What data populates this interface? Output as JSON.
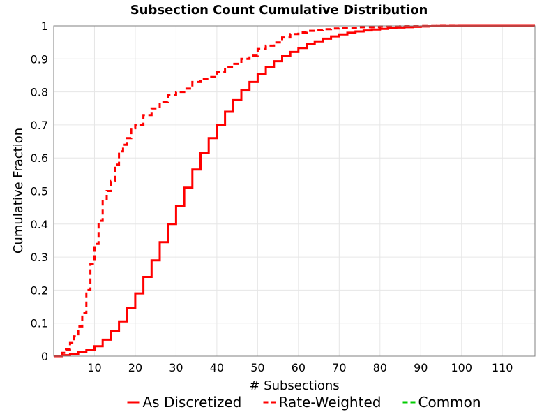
{
  "chart_data": {
    "type": "line",
    "title": "Subsection Count Cumulative Distribution",
    "xlabel": "# Subsections",
    "ylabel": "Cumulative Fraction",
    "xlim": [
      0,
      118
    ],
    "ylim": [
      0,
      1
    ],
    "x_ticks": [
      10,
      20,
      30,
      40,
      50,
      60,
      70,
      80,
      90,
      100,
      110
    ],
    "y_ticks": [
      "0",
      "0.1",
      "0.2",
      "0.3",
      "0.4",
      "0.5",
      "0.6",
      "0.7",
      "0.8",
      "0.9",
      "1"
    ],
    "grid": true,
    "legend_position": "bottom",
    "series": [
      {
        "name": "As Discretized",
        "color": "#ff0000",
        "style": "solid",
        "step": true,
        "x": [
          0,
          2,
          4,
          6,
          8,
          10,
          12,
          14,
          16,
          18,
          20,
          22,
          24,
          26,
          28,
          30,
          32,
          34,
          36,
          38,
          40,
          42,
          44,
          46,
          48,
          50,
          52,
          54,
          56,
          58,
          60,
          62,
          64,
          66,
          68,
          70,
          72,
          74,
          76,
          78,
          80,
          82,
          84,
          86,
          88,
          90,
          92,
          94,
          96,
          98,
          100,
          105,
          110,
          118
        ],
        "y": [
          0.0,
          0.003,
          0.007,
          0.012,
          0.018,
          0.03,
          0.05,
          0.075,
          0.105,
          0.145,
          0.19,
          0.24,
          0.29,
          0.345,
          0.4,
          0.455,
          0.51,
          0.565,
          0.615,
          0.66,
          0.7,
          0.74,
          0.775,
          0.805,
          0.83,
          0.855,
          0.875,
          0.893,
          0.908,
          0.921,
          0.933,
          0.944,
          0.953,
          0.961,
          0.968,
          0.974,
          0.979,
          0.983,
          0.986,
          0.989,
          0.991,
          0.993,
          0.995,
          0.996,
          0.997,
          0.998,
          0.999,
          0.9993,
          0.9996,
          0.9998,
          1.0,
          1.0,
          1.0,
          1.0
        ]
      },
      {
        "name": "Rate-Weighted",
        "color": "#ff0000",
        "style": "dashed",
        "step": true,
        "x": [
          0,
          2,
          3,
          4,
          5,
          6,
          7,
          8,
          9,
          10,
          11,
          12,
          13,
          14,
          15,
          16,
          17,
          18,
          19,
          20,
          22,
          24,
          26,
          28,
          30,
          32,
          34,
          36,
          38,
          40,
          42,
          44,
          46,
          48,
          50,
          52,
          54,
          56,
          58,
          60,
          62,
          64,
          66,
          68,
          70,
          75,
          80,
          85,
          90,
          95,
          100,
          110,
          118
        ],
        "y": [
          0.0,
          0.01,
          0.02,
          0.04,
          0.06,
          0.09,
          0.13,
          0.2,
          0.28,
          0.34,
          0.41,
          0.47,
          0.5,
          0.53,
          0.58,
          0.62,
          0.64,
          0.66,
          0.69,
          0.7,
          0.73,
          0.75,
          0.77,
          0.79,
          0.8,
          0.81,
          0.83,
          0.84,
          0.845,
          0.86,
          0.875,
          0.885,
          0.9,
          0.91,
          0.93,
          0.94,
          0.95,
          0.965,
          0.975,
          0.98,
          0.985,
          0.987,
          0.99,
          0.992,
          0.994,
          0.996,
          0.998,
          0.999,
          0.9995,
          1.0,
          1.0,
          1.0,
          1.0
        ]
      }
    ],
    "legend": [
      {
        "label": "As Discretized",
        "color": "#ff0000",
        "style": "solid"
      },
      {
        "label": "Rate-Weighted",
        "color": "#ff0000",
        "style": "dashed"
      },
      {
        "label": "Common",
        "color": "#00cc00",
        "style": "dashed"
      }
    ]
  }
}
